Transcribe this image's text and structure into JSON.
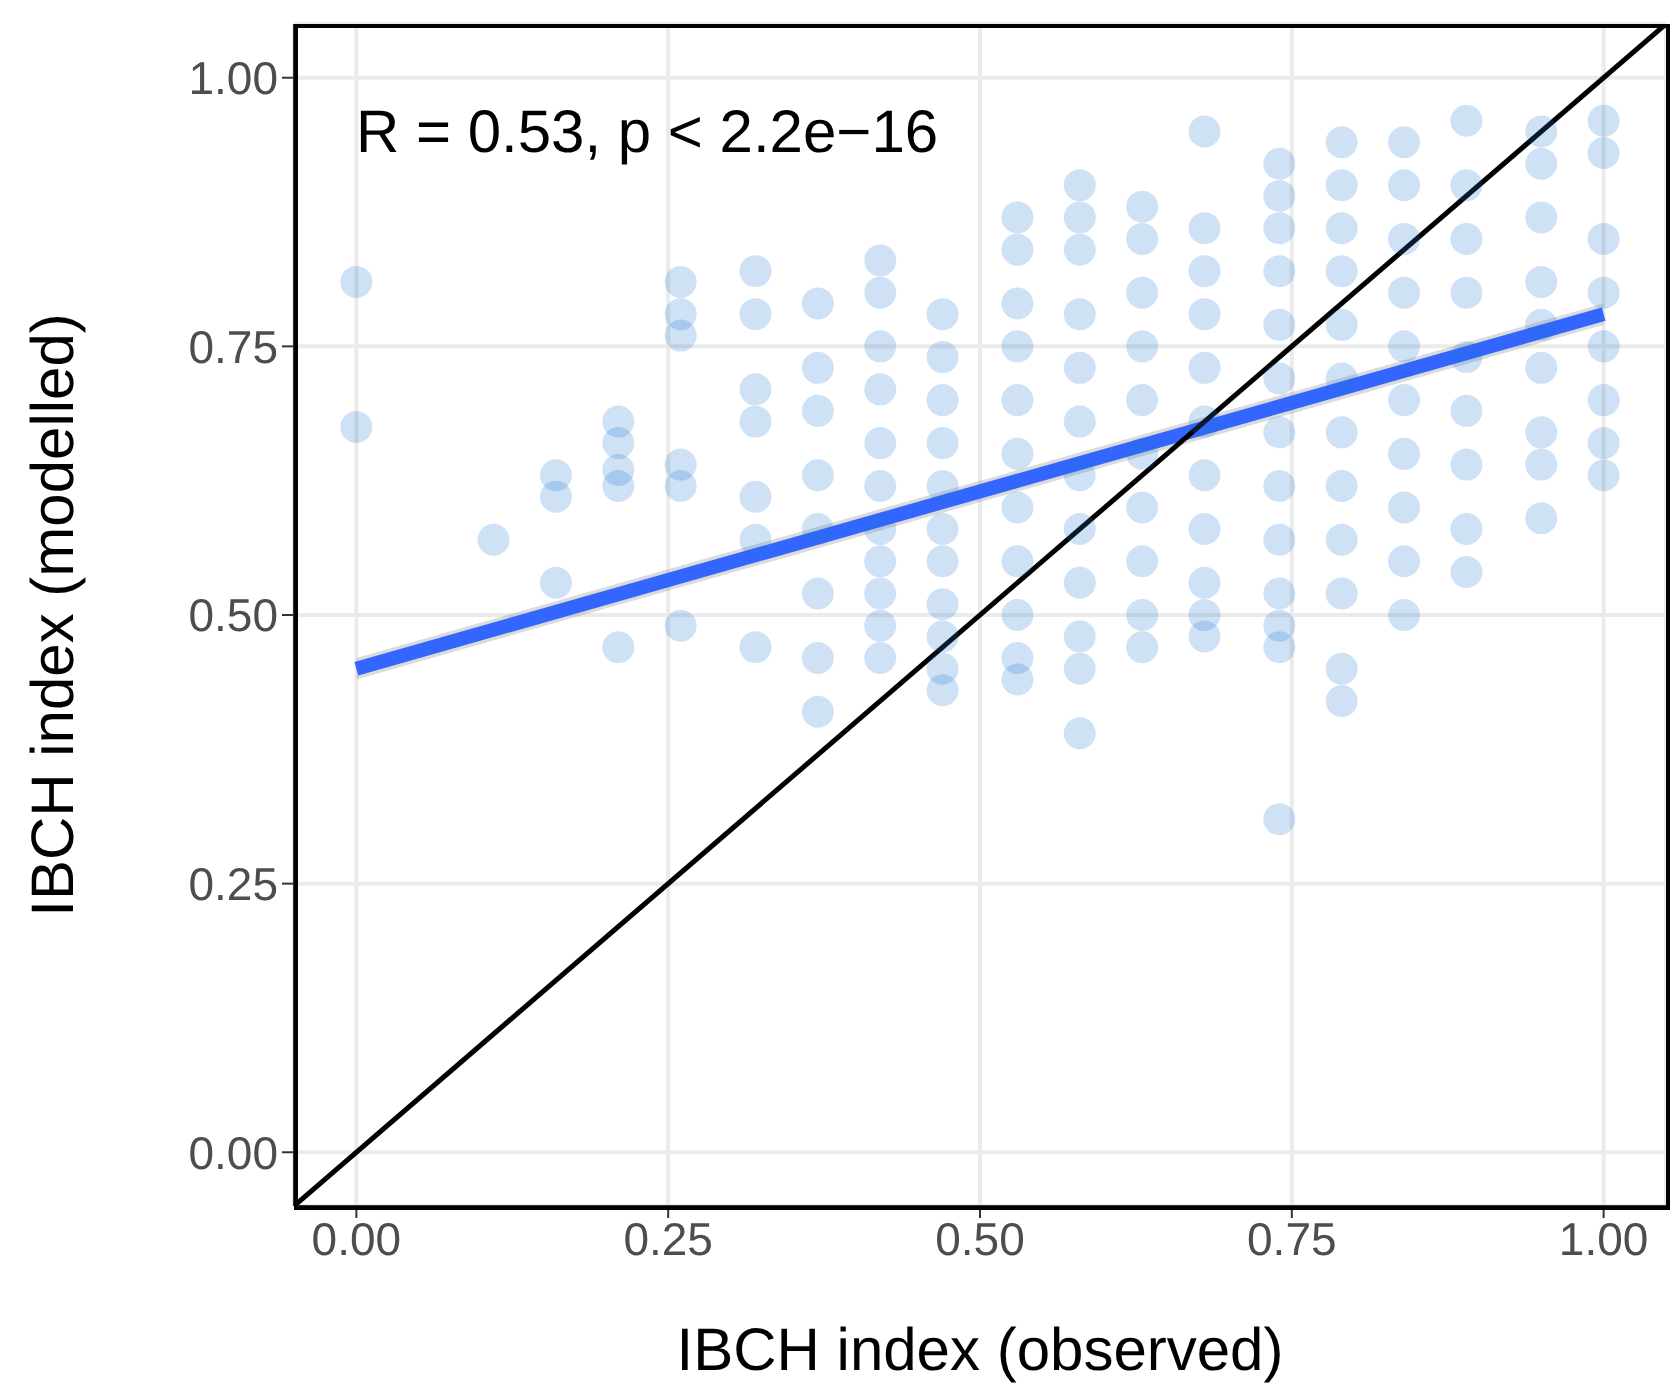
{
  "chart_data": {
    "type": "scatter",
    "xlabel": "IBCH index (observed)",
    "ylabel": "IBCH index (modelled)",
    "annotations": [
      "R = 0.53, p < 2.2e−16"
    ],
    "xlim": [
      -0.05,
      1.05
    ],
    "ylim": [
      -0.05,
      1.05
    ],
    "xticks": [
      {
        "value": 0,
        "label": "0.00"
      },
      {
        "value": 0.25,
        "label": "0.25"
      },
      {
        "value": 0.5,
        "label": "0.50"
      },
      {
        "value": 0.75,
        "label": "0.75"
      },
      {
        "value": 1,
        "label": "1.00"
      }
    ],
    "yticks": [
      {
        "value": 0,
        "label": "0.00"
      },
      {
        "value": 0.25,
        "label": "0.25"
      },
      {
        "value": 0.5,
        "label": "0.50"
      },
      {
        "value": 0.75,
        "label": "0.75"
      },
      {
        "value": 1,
        "label": "1.00"
      }
    ],
    "grid": true,
    "legend": false,
    "series": [
      {
        "marker": "circle",
        "color": "#1e78d0",
        "x": [
          0,
          0,
          0.11,
          0.16,
          0.16,
          0.16,
          0.21,
          0.21,
          0.21,
          0.21,
          0.21,
          0.26,
          0.26,
          0.26,
          0.26,
          0.26,
          0.26,
          0.32,
          0.32,
          0.32,
          0.32,
          0.32,
          0.32,
          0.32,
          0.37,
          0.37,
          0.37,
          0.37,
          0.37,
          0.37,
          0.37,
          0.37,
          0.42,
          0.42,
          0.42,
          0.42,
          0.42,
          0.42,
          0.42,
          0.42,
          0.42,
          0.42,
          0.42,
          0.47,
          0.47,
          0.47,
          0.47,
          0.47,
          0.47,
          0.47,
          0.47,
          0.47,
          0.47,
          0.47,
          0.53,
          0.53,
          0.53,
          0.53,
          0.53,
          0.53,
          0.53,
          0.53,
          0.53,
          0.53,
          0.53,
          0.58,
          0.58,
          0.58,
          0.58,
          0.58,
          0.58,
          0.58,
          0.58,
          0.58,
          0.58,
          0.58,
          0.58,
          0.63,
          0.63,
          0.63,
          0.63,
          0.63,
          0.63,
          0.63,
          0.63,
          0.63,
          0.63,
          0.68,
          0.68,
          0.68,
          0.68,
          0.68,
          0.68,
          0.68,
          0.68,
          0.68,
          0.68,
          0.68,
          0.74,
          0.74,
          0.74,
          0.74,
          0.74,
          0.74,
          0.74,
          0.74,
          0.74,
          0.74,
          0.74,
          0.74,
          0.74,
          0.79,
          0.79,
          0.79,
          0.79,
          0.79,
          0.79,
          0.79,
          0.79,
          0.79,
          0.79,
          0.79,
          0.79,
          0.84,
          0.84,
          0.84,
          0.84,
          0.84,
          0.84,
          0.84,
          0.84,
          0.84,
          0.84,
          0.89,
          0.89,
          0.89,
          0.89,
          0.89,
          0.89,
          0.89,
          0.89,
          0.89,
          0.95,
          0.95,
          0.95,
          0.95,
          0.95,
          0.95,
          0.95,
          0.95,
          0.95,
          1,
          1,
          1,
          1,
          1,
          1,
          1,
          1
        ],
        "values": [
          0.81,
          0.675,
          0.57,
          0.63,
          0.61,
          0.53,
          0.68,
          0.66,
          0.635,
          0.62,
          0.47,
          0.81,
          0.78,
          0.76,
          0.64,
          0.62,
          0.49,
          0.82,
          0.78,
          0.71,
          0.68,
          0.61,
          0.57,
          0.47,
          0.79,
          0.73,
          0.69,
          0.63,
          0.58,
          0.52,
          0.46,
          0.41,
          0.83,
          0.8,
          0.75,
          0.71,
          0.66,
          0.62,
          0.58,
          0.55,
          0.52,
          0.49,
          0.46,
          0.78,
          0.74,
          0.7,
          0.66,
          0.62,
          0.58,
          0.55,
          0.51,
          0.48,
          0.45,
          0.43,
          0.87,
          0.84,
          0.79,
          0.75,
          0.7,
          0.65,
          0.6,
          0.55,
          0.5,
          0.46,
          0.44,
          0.9,
          0.87,
          0.84,
          0.78,
          0.73,
          0.68,
          0.63,
          0.58,
          0.53,
          0.48,
          0.45,
          0.39,
          0.88,
          0.85,
          0.8,
          0.75,
          0.7,
          0.65,
          0.6,
          0.55,
          0.5,
          0.47,
          0.95,
          0.86,
          0.82,
          0.78,
          0.73,
          0.68,
          0.63,
          0.58,
          0.53,
          0.5,
          0.48,
          0.92,
          0.89,
          0.86,
          0.82,
          0.77,
          0.72,
          0.67,
          0.62,
          0.57,
          0.52,
          0.49,
          0.47,
          0.31,
          0.94,
          0.9,
          0.86,
          0.82,
          0.77,
          0.72,
          0.67,
          0.62,
          0.57,
          0.52,
          0.45,
          0.42,
          0.94,
          0.9,
          0.85,
          0.8,
          0.75,
          0.7,
          0.65,
          0.6,
          0.55,
          0.5,
          0.96,
          0.9,
          0.85,
          0.8,
          0.74,
          0.69,
          0.64,
          0.58,
          0.54,
          0.95,
          0.92,
          0.87,
          0.81,
          0.77,
          0.73,
          0.67,
          0.64,
          0.59,
          0.96,
          0.93,
          0.85,
          0.8,
          0.75,
          0.7,
          0.66,
          0.63
        ]
      },
      {
        "type": "line",
        "color": "#3366ff",
        "x": [
          0,
          1
        ],
        "values": [
          0.45,
          0.78
        ],
        "lower": [
          0.44,
          0.77
        ],
        "upper": [
          0.46,
          0.79
        ]
      },
      {
        "type": "line",
        "color": "#000000",
        "x": [
          -0.05,
          1.05
        ],
        "values": [
          -0.05,
          1.05
        ]
      }
    ]
  }
}
